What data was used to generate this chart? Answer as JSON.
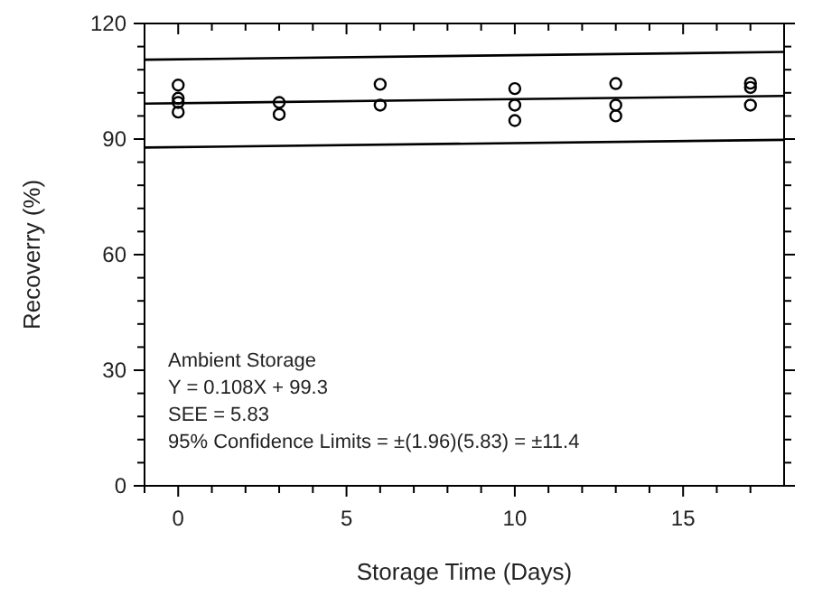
{
  "chart_data": {
    "type": "scatter",
    "xlabel": "Storage Time (Days)",
    "ylabel": "Recoverry (%)",
    "xlim": [
      -1,
      18
    ],
    "ylim": [
      0,
      120
    ],
    "xticks": [
      {
        "value": -1,
        "label": null
      },
      0,
      {
        "value": 1,
        "label": null
      },
      {
        "value": 2,
        "label": null
      },
      {
        "value": 3,
        "label": null
      },
      {
        "value": 4,
        "label": null
      },
      5,
      {
        "value": 6,
        "label": null
      },
      {
        "value": 7,
        "label": null
      },
      {
        "value": 8,
        "label": null
      },
      {
        "value": 9,
        "label": null
      },
      10,
      {
        "value": 11,
        "label": null
      },
      {
        "value": 12,
        "label": null
      },
      {
        "value": 13,
        "label": null
      },
      {
        "value": 14,
        "label": null
      },
      15,
      {
        "value": 16,
        "label": null
      },
      {
        "value": 17,
        "label": null
      }
    ],
    "yticks": [
      0,
      {
        "value": 6,
        "label": null
      },
      {
        "value": 12,
        "label": null
      },
      {
        "value": 18,
        "label": null
      },
      {
        "value": 24,
        "label": null
      },
      30,
      {
        "value": 36,
        "label": null
      },
      {
        "value": 42,
        "label": null
      },
      {
        "value": 48,
        "label": null
      },
      {
        "value": 54,
        "label": null
      },
      60,
      {
        "value": 66,
        "label": null
      },
      {
        "value": 72,
        "label": null
      },
      {
        "value": 78,
        "label": null
      },
      {
        "value": 84,
        "label": null
      },
      90,
      {
        "value": 96,
        "label": null
      },
      {
        "value": 102,
        "label": null
      },
      {
        "value": 108,
        "label": null
      },
      {
        "value": 114,
        "label": null
      },
      120
    ],
    "marker": "circle",
    "grid": false,
    "series": [
      {
        "color": "#000000",
        "x": [
          0,
          0,
          0,
          0,
          3,
          3,
          6,
          6,
          10,
          10,
          10,
          13,
          13,
          13,
          17,
          17,
          17
        ],
        "values": [
          104,
          100.6,
          99.5,
          97,
          99.5,
          96.4,
          104.2,
          98.8,
          103.1,
          98.8,
          94.8,
          104.4,
          98.8,
          96,
          104.5,
          103.4,
          98.8
        ]
      },
      {
        "type": "line",
        "color": "#000000",
        "marker": "none",
        "x": [
          -1,
          18
        ],
        "values": [
          99.2,
          101.2
        ]
      },
      {
        "type": "line",
        "color": "#000000",
        "marker": "none",
        "x": [
          -1,
          18
        ],
        "values": [
          110.6,
          112.6
        ]
      },
      {
        "type": "line",
        "color": "#000000",
        "marker": "none",
        "x": [
          -1,
          18
        ],
        "values": [
          87.8,
          89.8
        ]
      }
    ],
    "annotations": [
      "Ambient Storage",
      "Y = 0.108X + 99.3",
      "SEE = 5.83",
      "95% Confidence Limits = ±(1.96)(5.83) = ±11.4"
    ]
  }
}
